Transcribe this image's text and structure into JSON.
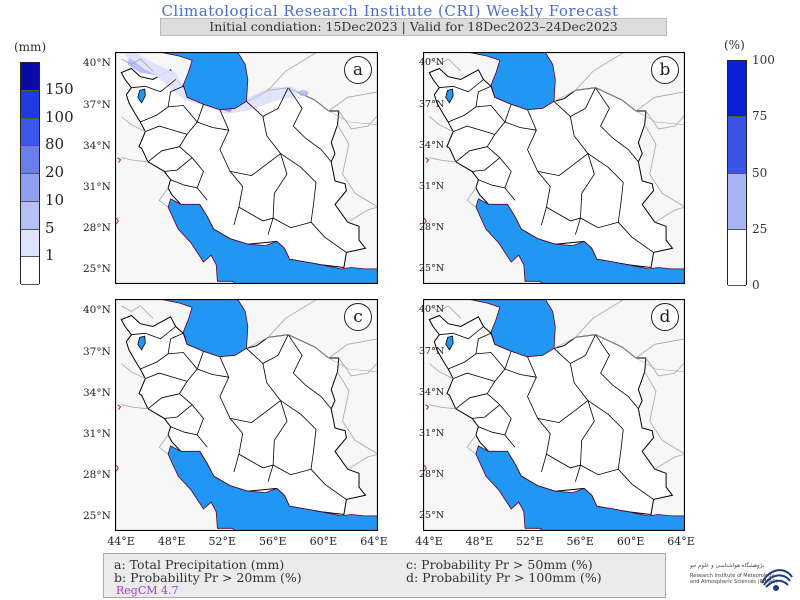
{
  "header": {
    "title": "Climatological Research Institute (CRI) Weekly Forecast",
    "subtitle": "Initial condiation: 15Dec2023 | Valid for 18Dec2023–24Dec2023"
  },
  "legend_precip": {
    "unit": "(mm)",
    "labels": [
      "150",
      "100",
      "80",
      "20",
      "10",
      "5",
      "1"
    ],
    "colors": [
      "#0a0aa8",
      "#1f3ae0",
      "#3e58ee",
      "#6a7ef0",
      "#8f9ff2",
      "#b5c0f6",
      "#dde3fb",
      "#ffffff"
    ]
  },
  "legend_prob": {
    "unit": "(%)",
    "labels": [
      "100",
      "75",
      "50",
      "25",
      "0"
    ],
    "colors": [
      "#0a1fd8",
      "#3a55e6",
      "#a9b3f3",
      "#ffffff"
    ]
  },
  "map": {
    "lat_labels": [
      "40°N",
      "37°N",
      "34°N",
      "31°N",
      "28°N",
      "25°N"
    ],
    "lon_labels": [
      "44°E",
      "48°E",
      "52°E",
      "56°E",
      "60°E",
      "64°E"
    ],
    "water_color": "#2196f3",
    "border_color": "#000000"
  },
  "panels": [
    {
      "letter": "a"
    },
    {
      "letter": "b"
    },
    {
      "letter": "c"
    },
    {
      "letter": "d"
    }
  ],
  "footer": {
    "a": "a: Total Precipitation (mm)",
    "b": "b: Probability Pr > 20mm (%)",
    "c": "c: Probability Pr > 50mm (%)",
    "d": "d: Probability Pr > 100mm (%)",
    "model": "RegCM 4.7"
  },
  "logo": {
    "line1": "پژوهشگاه هواشناسی و علوم جو",
    "line2": "Research Institute of Meteorology",
    "line3": "and Atmospheric Sciences (RIMAS)"
  }
}
